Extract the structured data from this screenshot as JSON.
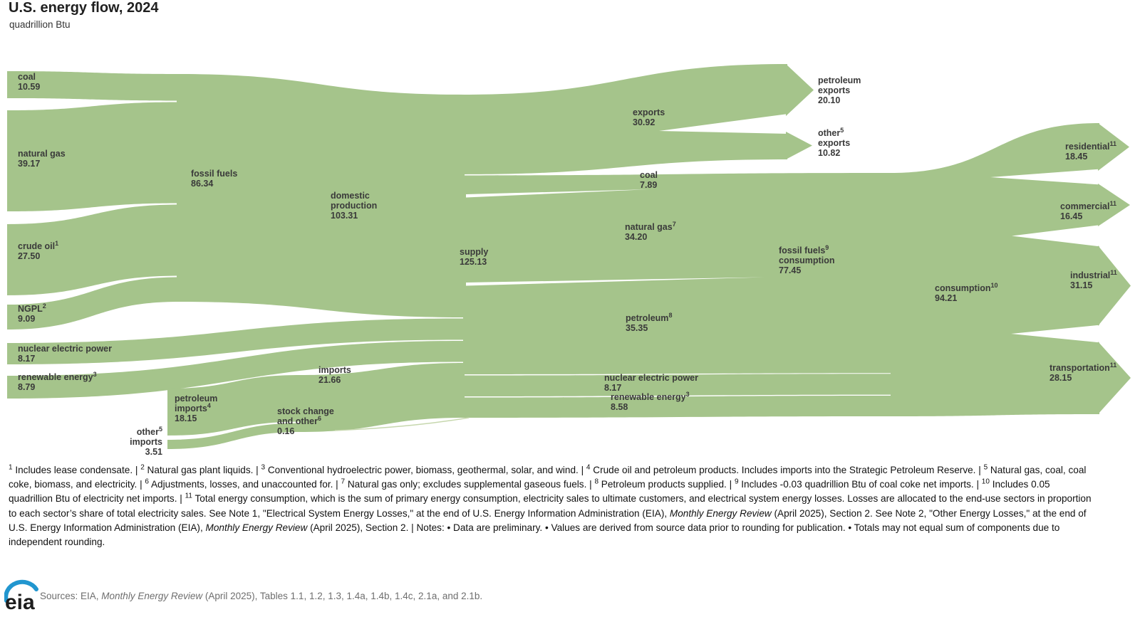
{
  "title": "U.S. energy flow, 2024",
  "subtitle": "quadrillion Btu",
  "colors": {
    "flow_green": "#a5c48b",
    "stock_line_green": "#c6d7ad",
    "label_text": "#3a3a3a",
    "footnote_text": "#111111",
    "source_text": "#6e6e6e",
    "logo_blue": "#2196cf",
    "background": "#ffffff"
  },
  "logo_text": "eia",
  "labels": [
    {
      "id": "coal",
      "lines": [
        {
          "t": "coal"
        },
        {
          "t": "10.59"
        }
      ]
    },
    {
      "id": "natural-gas",
      "lines": [
        {
          "t": "natural gas"
        },
        {
          "t": "39.17"
        }
      ]
    },
    {
      "id": "crude-oil",
      "lines": [
        {
          "t": "crude oil",
          "s": "1"
        },
        {
          "t": "27.50"
        }
      ]
    },
    {
      "id": "ngpl",
      "lines": [
        {
          "t": "NGPL",
          "s": "2"
        },
        {
          "t": "9.09"
        }
      ]
    },
    {
      "id": "nuclear",
      "lines": [
        {
          "t": "nuclear electric power"
        },
        {
          "t": "8.17"
        }
      ]
    },
    {
      "id": "renewable",
      "lines": [
        {
          "t": "renewable energy",
          "s": "3"
        },
        {
          "t": "8.79"
        }
      ]
    },
    {
      "id": "fossil-fuels",
      "lines": [
        {
          "t": "fossil fuels"
        },
        {
          "t": "86.34"
        }
      ]
    },
    {
      "id": "domestic-production",
      "lines": [
        {
          "t": "domestic"
        },
        {
          "t": "production"
        },
        {
          "t": "103.31"
        }
      ]
    },
    {
      "id": "petroleum-imports",
      "lines": [
        {
          "t": "petroleum"
        },
        {
          "t": "imports",
          "s": "4"
        },
        {
          "t": "18.15"
        }
      ]
    },
    {
      "id": "other-imports",
      "lines": [
        {
          "t": "other",
          "s": "5"
        },
        {
          "t": "imports"
        },
        {
          "t": "3.51"
        }
      ]
    },
    {
      "id": "imports",
      "lines": [
        {
          "t": "imports"
        },
        {
          "t": "21.66"
        }
      ]
    },
    {
      "id": "stock-change",
      "lines": [
        {
          "t": "stock change"
        },
        {
          "t": "and other",
          "s": "6"
        },
        {
          "t": "0.16"
        }
      ]
    },
    {
      "id": "supply",
      "lines": [
        {
          "t": "supply"
        },
        {
          "t": "125.13"
        }
      ]
    },
    {
      "id": "exports",
      "lines": [
        {
          "t": "exports"
        },
        {
          "t": "30.92"
        }
      ]
    },
    {
      "id": "petroleum-exports",
      "lines": [
        {
          "t": "petroleum"
        },
        {
          "t": "exports"
        },
        {
          "t": "20.10"
        }
      ]
    },
    {
      "id": "other-exports",
      "lines": [
        {
          "t": "other",
          "s": "5"
        },
        {
          "t": "exports"
        },
        {
          "t": "10.82"
        }
      ]
    },
    {
      "id": "coal-out",
      "lines": [
        {
          "t": "coal"
        },
        {
          "t": "7.89"
        }
      ]
    },
    {
      "id": "natural-gas-out",
      "lines": [
        {
          "t": "natural gas",
          "s": "7"
        },
        {
          "t": "34.20"
        }
      ]
    },
    {
      "id": "fossil-fuels-consumption",
      "lines": [
        {
          "t": "fossil fuels",
          "s": "9"
        },
        {
          "t": "consumption"
        },
        {
          "t": "77.45"
        }
      ]
    },
    {
      "id": "petroleum-out",
      "lines": [
        {
          "t": "petroleum",
          "s": "8"
        },
        {
          "t": "35.35"
        }
      ]
    },
    {
      "id": "nuclear-out",
      "lines": [
        {
          "t": "nuclear electric power"
        },
        {
          "t": "8.17"
        }
      ]
    },
    {
      "id": "renewable-out",
      "lines": [
        {
          "t": "renewable energy",
          "s": "3"
        },
        {
          "t": "8.58"
        }
      ]
    },
    {
      "id": "consumption",
      "lines": [
        {
          "t": "consumption",
          "s": "10"
        },
        {
          "t": "94.21"
        }
      ]
    },
    {
      "id": "residential",
      "lines": [
        {
          "t": "residential",
          "s": "11"
        },
        {
          "t": "18.45"
        }
      ]
    },
    {
      "id": "commercial",
      "lines": [
        {
          "t": "commercial",
          "s": "11"
        },
        {
          "t": "16.45"
        }
      ]
    },
    {
      "id": "industrial",
      "lines": [
        {
          "t": "industrial",
          "s": "11"
        },
        {
          "t": "31.15"
        }
      ]
    },
    {
      "id": "transportation",
      "lines": [
        {
          "t": "transportation",
          "s": "11"
        },
        {
          "t": "28.15"
        }
      ]
    }
  ],
  "footnotes": [
    {
      "s": "1"
    },
    {
      "t": " Includes lease condensate. | "
    },
    {
      "s": "2"
    },
    {
      "t": " Natural gas plant liquids. | "
    },
    {
      "s": "3"
    },
    {
      "t": " Conventional hydroelectric power, biomass, geothermal, solar, and wind. | "
    },
    {
      "s": "4"
    },
    {
      "t": " Crude oil and petroleum products. Includes imports into the Strategic Petroleum Reserve. | "
    },
    {
      "s": "5"
    },
    {
      "t": " Natural gas, coal, coal coke, biomass, and electricity. | "
    },
    {
      "s": "6"
    },
    {
      "t": " Adjustments, losses, and unaccounted for. | "
    },
    {
      "s": "7"
    },
    {
      "t": " Natural gas only; excludes supplemental gaseous fuels. | "
    },
    {
      "s": "8"
    },
    {
      "t": " Petroleum products supplied. | "
    },
    {
      "s": "9"
    },
    {
      "t": " Includes -0.03 quadrillion Btu of coal coke net imports. | "
    },
    {
      "s": "10"
    },
    {
      "t": " Includes 0.05 quadrillion Btu of electricity net imports. | "
    },
    {
      "s": "11"
    },
    {
      "t": " Total energy consumption, which is the sum of primary energy consumption, electricity sales to ultimate customers, and electrical system energy losses. Losses are allocated to the end-use sectors in proportion to each sector’s share of total electricity sales. See Note 1, \"Electrical System Energy Losses,\" at the end of U.S. Energy Information Administration (EIA), "
    },
    {
      "t": "Monthly Energy Review",
      "i": true
    },
    {
      "t": " (April 2025), Section 2. See Note 2, \"Other Energy Losses,\" at the end of U.S. Energy Information Administration (EIA), "
    },
    {
      "t": "Monthly Energy Review",
      "i": true
    },
    {
      "t": " (April 2025), Section 2. | Notes: • Data are preliminary. • Values are derived from source data prior to rounding for publication. • Totals may not equal sum of components due to independent rounding."
    }
  ],
  "source_line": [
    {
      "t": "Sources: EIA, "
    },
    {
      "t": "Monthly Energy Review",
      "i": true
    },
    {
      "t": " (April 2025), Tables 1.1, 1.2, 1.3, 1.4a, 1.4b, 1.4c, 2.1a, and 2.1b."
    }
  ],
  "chart_data": {
    "type": "sankey",
    "title": "U.S. energy flow, 2024",
    "unit": "quadrillion Btu",
    "nodes": [
      {
        "name": "coal",
        "value": 10.59
      },
      {
        "name": "natural gas",
        "value": 39.17
      },
      {
        "name": "crude oil",
        "value": 27.5
      },
      {
        "name": "NGPL",
        "value": 9.09
      },
      {
        "name": "nuclear electric power",
        "value": 8.17
      },
      {
        "name": "renewable energy",
        "value": 8.79
      },
      {
        "name": "fossil fuels",
        "value": 86.34
      },
      {
        "name": "petroleum imports",
        "value": 18.15
      },
      {
        "name": "other imports",
        "value": 3.51
      },
      {
        "name": "imports",
        "value": 21.66
      },
      {
        "name": "stock change and other",
        "value": 0.16
      },
      {
        "name": "domestic production",
        "value": 103.31
      },
      {
        "name": "supply",
        "value": 125.13
      },
      {
        "name": "exports",
        "value": 30.92
      },
      {
        "name": "petroleum exports",
        "value": 20.1
      },
      {
        "name": "other exports",
        "value": 10.82
      },
      {
        "name": "coal consumption",
        "value": 7.89
      },
      {
        "name": "natural gas consumption",
        "value": 34.2
      },
      {
        "name": "petroleum consumption",
        "value": 35.35
      },
      {
        "name": "nuclear electric power consumption",
        "value": 8.17
      },
      {
        "name": "renewable energy consumption",
        "value": 8.58
      },
      {
        "name": "fossil fuels consumption",
        "value": 77.45
      },
      {
        "name": "consumption",
        "value": 94.21
      },
      {
        "name": "residential",
        "value": 18.45
      },
      {
        "name": "commercial",
        "value": 16.45
      },
      {
        "name": "industrial",
        "value": 31.15
      },
      {
        "name": "transportation",
        "value": 28.15
      }
    ],
    "links": [
      {
        "source": "coal",
        "target": "fossil fuels",
        "value": 10.59
      },
      {
        "source": "natural gas",
        "target": "fossil fuels",
        "value": 39.17
      },
      {
        "source": "crude oil",
        "target": "fossil fuels",
        "value": 27.5
      },
      {
        "source": "NGPL",
        "target": "fossil fuels",
        "value": 9.09
      },
      {
        "source": "fossil fuels",
        "target": "domestic production",
        "value": 86.34
      },
      {
        "source": "nuclear electric power",
        "target": "domestic production",
        "value": 8.17
      },
      {
        "source": "renewable energy",
        "target": "domestic production",
        "value": 8.79
      },
      {
        "source": "petroleum imports",
        "target": "imports",
        "value": 18.15
      },
      {
        "source": "other imports",
        "target": "imports",
        "value": 3.51
      },
      {
        "source": "domestic production",
        "target": "supply",
        "value": 103.31
      },
      {
        "source": "imports",
        "target": "supply",
        "value": 21.66
      },
      {
        "source": "stock change and other",
        "target": "supply",
        "value": 0.16
      },
      {
        "source": "supply",
        "target": "exports",
        "value": 30.92
      },
      {
        "source": "exports",
        "target": "petroleum exports",
        "value": 20.1
      },
      {
        "source": "exports",
        "target": "other exports",
        "value": 10.82
      },
      {
        "source": "supply",
        "target": "coal consumption",
        "value": 7.89
      },
      {
        "source": "supply",
        "target": "natural gas consumption",
        "value": 34.2
      },
      {
        "source": "supply",
        "target": "petroleum consumption",
        "value": 35.35
      },
      {
        "source": "supply",
        "target": "nuclear electric power consumption",
        "value": 8.17
      },
      {
        "source": "supply",
        "target": "renewable energy consumption",
        "value": 8.58
      },
      {
        "source": "coal consumption",
        "target": "fossil fuels consumption",
        "value": 7.89
      },
      {
        "source": "natural gas consumption",
        "target": "fossil fuels consumption",
        "value": 34.2
      },
      {
        "source": "petroleum consumption",
        "target": "fossil fuels consumption",
        "value": 35.35
      },
      {
        "source": "fossil fuels consumption",
        "target": "consumption",
        "value": 77.45
      },
      {
        "source": "nuclear electric power consumption",
        "target": "consumption",
        "value": 8.17
      },
      {
        "source": "renewable energy consumption",
        "target": "consumption",
        "value": 8.58
      },
      {
        "source": "consumption",
        "target": "residential",
        "value": 18.45
      },
      {
        "source": "consumption",
        "target": "commercial",
        "value": 16.45
      },
      {
        "source": "consumption",
        "target": "industrial",
        "value": 31.15
      },
      {
        "source": "consumption",
        "target": "transportation",
        "value": 28.15
      }
    ],
    "legend_position": "none",
    "grid": false
  }
}
